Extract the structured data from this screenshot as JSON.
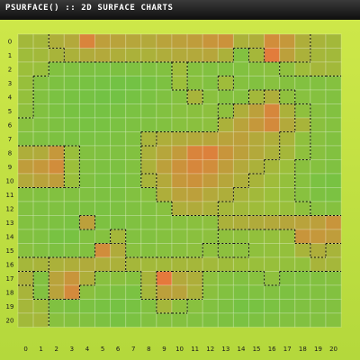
{
  "title": "PSURFACE() :: 2D SURFACE CHARTS",
  "chart_data": {
    "type": "heatmap",
    "title": "PSURFACE() :: 2D SURFACE CHARTS",
    "x_ticks": [
      "0",
      "1",
      "2",
      "3",
      "4",
      "5",
      "6",
      "7",
      "8",
      "9",
      "10",
      "11",
      "12",
      "13",
      "14",
      "15",
      "16",
      "17",
      "18",
      "19",
      "20"
    ],
    "y_ticks": [
      "0",
      "1",
      "2",
      "3",
      "4",
      "5",
      "6",
      "7",
      "8",
      "9",
      "10",
      "11",
      "12",
      "13",
      "14",
      "15",
      "16",
      "17",
      "18",
      "19",
      "20"
    ],
    "contour_levels": [
      0.4,
      0.6
    ],
    "colors": {
      "low": "#5cc449",
      "mid": "#9cbf3a",
      "high": "#e5793c"
    },
    "values": [
      [
        0.55,
        0.56,
        0.62,
        0.66,
        0.92,
        0.73,
        0.7,
        0.68,
        0.66,
        0.7,
        0.72,
        0.74,
        0.8,
        0.82,
        0.6,
        0.62,
        0.86,
        0.78,
        0.62,
        0.58,
        0.55
      ],
      [
        0.52,
        0.54,
        0.58,
        0.6,
        0.64,
        0.66,
        0.62,
        0.6,
        0.6,
        0.63,
        0.65,
        0.66,
        0.68,
        0.6,
        0.3,
        0.56,
        0.98,
        0.72,
        0.6,
        0.56,
        0.54
      ],
      [
        0.5,
        0.48,
        0.3,
        0.28,
        0.26,
        0.25,
        0.26,
        0.27,
        0.28,
        0.3,
        0.52,
        0.32,
        0.3,
        0.3,
        0.3,
        0.34,
        0.36,
        0.4,
        0.52,
        0.56,
        0.54
      ],
      [
        0.46,
        0.32,
        0.26,
        0.24,
        0.22,
        0.2,
        0.18,
        0.18,
        0.22,
        0.26,
        0.5,
        0.34,
        0.3,
        0.52,
        0.32,
        0.3,
        0.34,
        0.32,
        0.3,
        0.3,
        0.32
      ],
      [
        0.44,
        0.3,
        0.24,
        0.22,
        0.2,
        0.18,
        0.18,
        0.2,
        0.24,
        0.28,
        0.32,
        0.58,
        0.36,
        0.32,
        0.32,
        0.55,
        0.62,
        0.4,
        0.34,
        0.32,
        0.3
      ],
      [
        0.4,
        0.3,
        0.25,
        0.22,
        0.2,
        0.2,
        0.22,
        0.24,
        0.26,
        0.3,
        0.34,
        0.36,
        0.38,
        0.4,
        0.62,
        0.72,
        0.9,
        0.6,
        0.4,
        0.34,
        0.3
      ],
      [
        0.34,
        0.3,
        0.26,
        0.24,
        0.22,
        0.22,
        0.24,
        0.26,
        0.28,
        0.3,
        0.34,
        0.36,
        0.38,
        0.6,
        0.7,
        0.78,
        0.88,
        0.66,
        0.58,
        0.36,
        0.32
      ],
      [
        0.3,
        0.28,
        0.26,
        0.24,
        0.24,
        0.24,
        0.26,
        0.28,
        0.58,
        0.62,
        0.64,
        0.66,
        0.68,
        0.7,
        0.72,
        0.66,
        0.62,
        0.58,
        0.4,
        0.34,
        0.3
      ],
      [
        0.62,
        0.64,
        0.78,
        0.48,
        0.3,
        0.28,
        0.28,
        0.3,
        0.6,
        0.68,
        0.76,
        0.92,
        0.94,
        0.8,
        0.72,
        0.66,
        0.6,
        0.56,
        0.4,
        0.34,
        0.3
      ],
      [
        0.74,
        0.78,
        0.86,
        0.5,
        0.3,
        0.26,
        0.26,
        0.3,
        0.6,
        0.72,
        0.82,
        0.9,
        0.86,
        0.74,
        0.66,
        0.6,
        0.56,
        0.5,
        0.36,
        0.32,
        0.28
      ],
      [
        0.66,
        0.7,
        0.74,
        0.48,
        0.28,
        0.24,
        0.24,
        0.28,
        0.58,
        0.66,
        0.78,
        0.82,
        0.76,
        0.68,
        0.62,
        0.58,
        0.52,
        0.44,
        0.34,
        0.24,
        0.22
      ],
      [
        0.32,
        0.3,
        0.3,
        0.3,
        0.28,
        0.26,
        0.26,
        0.3,
        0.34,
        0.62,
        0.7,
        0.72,
        0.66,
        0.62,
        0.58,
        0.54,
        0.5,
        0.42,
        0.34,
        0.26,
        0.24
      ],
      [
        0.3,
        0.28,
        0.28,
        0.26,
        0.26,
        0.24,
        0.26,
        0.28,
        0.3,
        0.34,
        0.62,
        0.64,
        0.6,
        0.56,
        0.54,
        0.52,
        0.5,
        0.48,
        0.4,
        0.34,
        0.32
      ],
      [
        0.3,
        0.28,
        0.26,
        0.24,
        0.72,
        0.26,
        0.26,
        0.28,
        0.3,
        0.32,
        0.34,
        0.36,
        0.38,
        0.6,
        0.62,
        0.64,
        0.66,
        0.68,
        0.7,
        0.72,
        0.8
      ],
      [
        0.3,
        0.28,
        0.22,
        0.22,
        0.3,
        0.32,
        0.56,
        0.3,
        0.3,
        0.32,
        0.34,
        0.36,
        0.38,
        0.4,
        0.4,
        0.42,
        0.44,
        0.48,
        0.8,
        0.78,
        0.74
      ],
      [
        0.34,
        0.3,
        0.26,
        0.28,
        0.3,
        0.86,
        0.64,
        0.34,
        0.32,
        0.34,
        0.36,
        0.38,
        0.4,
        0.38,
        0.38,
        0.4,
        0.42,
        0.44,
        0.58,
        0.62,
        0.58
      ],
      [
        0.56,
        0.58,
        0.6,
        0.62,
        0.64,
        0.62,
        0.6,
        0.56,
        0.54,
        0.54,
        0.56,
        0.56,
        0.54,
        0.52,
        0.5,
        0.48,
        0.46,
        0.44,
        0.42,
        0.58,
        0.56
      ],
      [
        0.6,
        0.3,
        0.7,
        0.8,
        0.62,
        0.34,
        0.36,
        0.32,
        0.58,
        1.0,
        0.66,
        0.62,
        0.38,
        0.32,
        0.3,
        0.34,
        0.4,
        0.3,
        0.28,
        0.3,
        0.32
      ],
      [
        0.58,
        0.3,
        0.7,
        0.88,
        0.36,
        0.3,
        0.26,
        0.24,
        0.56,
        0.72,
        0.7,
        0.6,
        0.36,
        0.3,
        0.26,
        0.28,
        0.3,
        0.26,
        0.28,
        0.3,
        0.3
      ],
      [
        0.56,
        0.52,
        0.28,
        0.26,
        0.24,
        0.22,
        0.2,
        0.22,
        0.3,
        0.56,
        0.4,
        0.34,
        0.3,
        0.26,
        0.2,
        0.22,
        0.24,
        0.26,
        0.28,
        0.3,
        0.3
      ],
      [
        0.54,
        0.56,
        0.34,
        0.32,
        0.3,
        0.26,
        0.22,
        0.24,
        0.3,
        0.32,
        0.32,
        0.3,
        0.28,
        0.26,
        0.24,
        0.26,
        0.28,
        0.3,
        0.3,
        0.3,
        0.32
      ]
    ]
  }
}
